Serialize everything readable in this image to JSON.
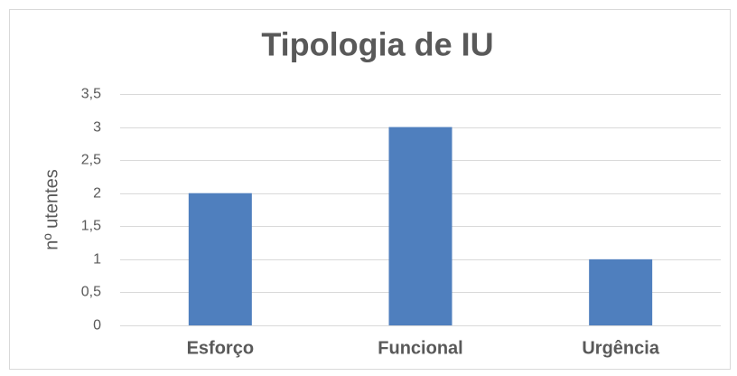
{
  "chart_data": {
    "type": "bar",
    "title": "Tipologia de IU",
    "y_label": "nº utentes",
    "categories": [
      "Esforço",
      "Funcional",
      "Urgência"
    ],
    "values": [
      2,
      3,
      1
    ],
    "color": "#4f7fbe",
    "ylim": [
      0,
      3.5
    ],
    "yticks": [
      0,
      {
        "value": 0.5,
        "label": "0,5"
      },
      1,
      {
        "value": 1.5,
        "label": "1,5"
      },
      2,
      {
        "value": 2.5,
        "label": "2,5"
      },
      3,
      {
        "value": 3.5,
        "label": "3,5"
      }
    ],
    "grid": true
  }
}
